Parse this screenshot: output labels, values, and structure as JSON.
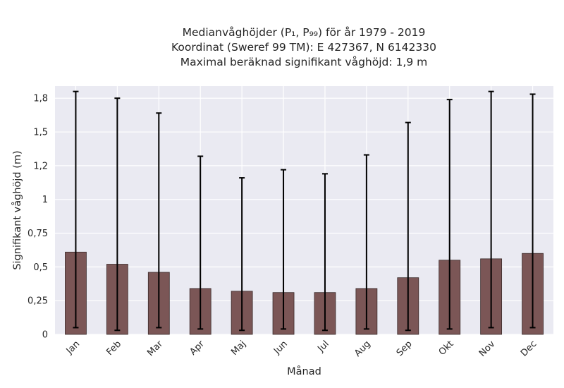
{
  "chart_data": {
    "type": "bar",
    "title_lines": [
      "Medianvåghöjder (P₁, P₉₉) för år 1979 - 2019",
      "Koordinat (Sweref 99 TM): E 427367, N 6142330",
      "Maximal beräknad signifikant våghöjd: 1,9 m"
    ],
    "xlabel": "Månad",
    "ylabel": "Signifikant våghöjd (m)",
    "categories": [
      "Jan",
      "Feb",
      "Mar",
      "Apr",
      "Maj",
      "Jun",
      "Jul",
      "Aug",
      "Sep",
      "Okt",
      "Nov",
      "Dec"
    ],
    "values": [
      0.61,
      0.52,
      0.46,
      0.34,
      0.32,
      0.31,
      0.31,
      0.34,
      0.42,
      0.55,
      0.56,
      0.6
    ],
    "p1": [
      0.05,
      0.03,
      0.05,
      0.04,
      0.03,
      0.04,
      0.03,
      0.04,
      0.03,
      0.04,
      0.05,
      0.05
    ],
    "p99": [
      1.8,
      1.75,
      1.64,
      1.32,
      1.16,
      1.22,
      1.19,
      1.33,
      1.57,
      1.74,
      1.8,
      1.78
    ],
    "yticks": [
      0,
      0.25,
      0.5,
      0.75,
      1,
      1.25,
      1.5,
      1.75
    ],
    "ytick_labels": [
      "0",
      "0,25",
      "0,5",
      "0,75",
      "1",
      "1,2",
      "1,5",
      "1,8"
    ],
    "ylim": [
      0,
      1.84
    ],
    "grid": true,
    "bar_color": "#7b5656",
    "bar_edge_color": "#3a2a2a",
    "errorbar_color": "#000000",
    "background_color": "#eaeaf2",
    "grid_color": "#ffffff"
  }
}
